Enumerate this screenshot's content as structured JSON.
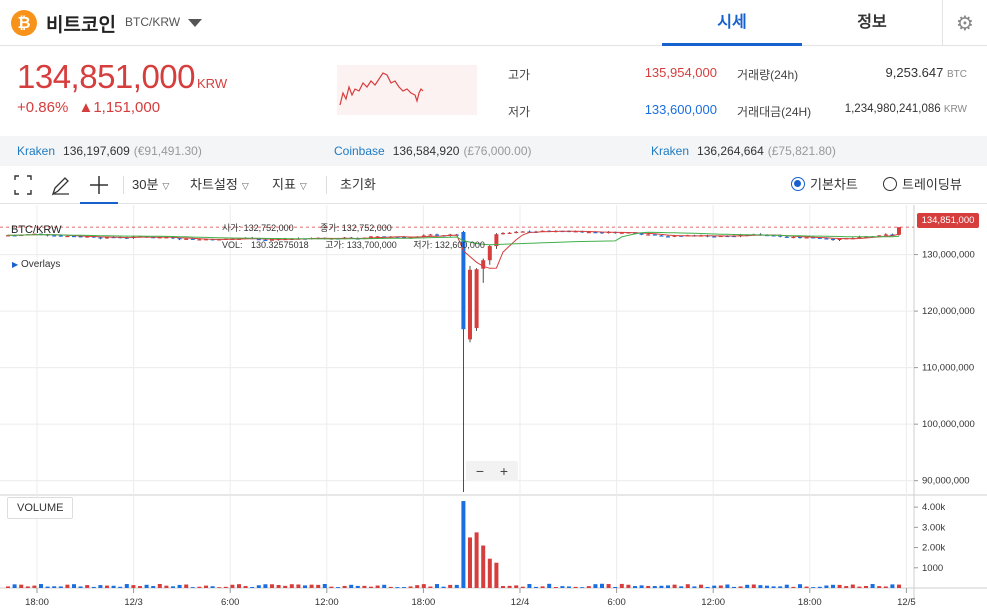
{
  "header": {
    "coin_icon": "bitcoin-icon",
    "coin_symbol_glyph": "₿",
    "coin_name": "비트코인",
    "pair": "BTC/KRW",
    "tabs": [
      {
        "label": "시세",
        "active": true
      },
      {
        "label": "정보",
        "active": false
      }
    ],
    "settings_icon": "gear-icon"
  },
  "price": {
    "current": "134,851,000",
    "unit": "KRW",
    "change_pct": "+0.86%",
    "change_abs": "▲1,151,000",
    "color": "#d63d3d"
  },
  "stats": {
    "high_label": "고가",
    "high_value": "135,954,000",
    "low_label": "저가",
    "low_value": "133,600,000",
    "volume_label": "거래량(24h)",
    "volume_value": "9,253.647",
    "volume_unit": "BTC",
    "amount_label": "거래대금(24H)",
    "amount_value": "1,234,980,241,086",
    "amount_unit": "KRW"
  },
  "exchanges": [
    {
      "name": "Kraken",
      "price": "136,197,609",
      "fx": "(€91,491.30)"
    },
    {
      "name": "Coinbase",
      "price": "136,584,920",
      "fx": "(£76,000.00)"
    },
    {
      "name": "Kraken",
      "price": "136,264,664",
      "fx": "(£75,821.80)"
    }
  ],
  "toolbar": {
    "fullscreen_icon": "fullscreen-icon",
    "draw_icon": "pencil-icon",
    "crosshair_icon": "crosshair-icon",
    "interval": "30분",
    "chart_settings": "차트설정",
    "indicators": "지표",
    "reset": "초기화",
    "basic_chart": "기본차트",
    "tradingview": "트레이딩뷰"
  },
  "chart": {
    "symbol": "BTC/KRW",
    "overlays_label": "Overlays",
    "ohlc": {
      "open_label": "시가:",
      "open": "132,752,000",
      "close_label": "종가:",
      "close": "132,752,000",
      "vol_label": "VOL:",
      "vol": "130.32575018",
      "high_label": "고가:",
      "high": "133,700,000",
      "low_label": "저가:",
      "low": "132,600,000"
    },
    "last_price_tag": "134,851,000",
    "volume_button": "VOLUME",
    "zoom_out": "−",
    "zoom_in": "+",
    "up_color": "#d63d3d",
    "down_color": "#1b6ee0"
  },
  "chart_data": {
    "type": "candlestick",
    "y_ticks": [
      "130,000,000",
      "120,000,000",
      "110,000,000",
      "100,000,000",
      "90,000,000"
    ],
    "y_tick_values": [
      130000000,
      120000000,
      110000000,
      100000000,
      90000000
    ],
    "ylim": [
      88000000,
      137000000
    ],
    "x_ticks": [
      "18:00",
      "12/3",
      "6:00",
      "12:00",
      "18:00",
      "12/4",
      "6:00",
      "12:00",
      "18:00",
      "12/5"
    ],
    "volume_ticks": [
      "4.00k",
      "3.00k",
      "2.00k",
      "1000"
    ],
    "volume_tick_values": [
      4000,
      3000,
      2000,
      1000
    ],
    "volume_ylim": [
      0,
      4500
    ],
    "candles_before_crash": 69,
    "base_price": 133400000,
    "crash_candles": [
      {
        "o": 134000000,
        "h": 134200000,
        "l": 88000000,
        "c": 116800000,
        "v": 4300
      },
      {
        "o": 115000000,
        "h": 128000000,
        "l": 114500000,
        "c": 127300000,
        "v": 2500
      },
      {
        "o": 117000000,
        "h": 127600000,
        "l": 116500000,
        "c": 127400000,
        "v": 2750
      },
      {
        "o": 127500000,
        "h": 129300000,
        "l": 125000000,
        "c": 129000000,
        "v": 2100
      },
      {
        "o": 129000000,
        "h": 131800000,
        "l": 128200000,
        "c": 131500000,
        "v": 1450
      },
      {
        "o": 131500000,
        "h": 133800000,
        "l": 131000000,
        "c": 133600000,
        "v": 1250
      }
    ],
    "moving_averages": [
      {
        "name": "MA1",
        "color": "#d63d3d"
      },
      {
        "name": "MA2",
        "color": "#41b04a"
      }
    ],
    "current": 134851000,
    "legend": "none",
    "grid": true
  }
}
